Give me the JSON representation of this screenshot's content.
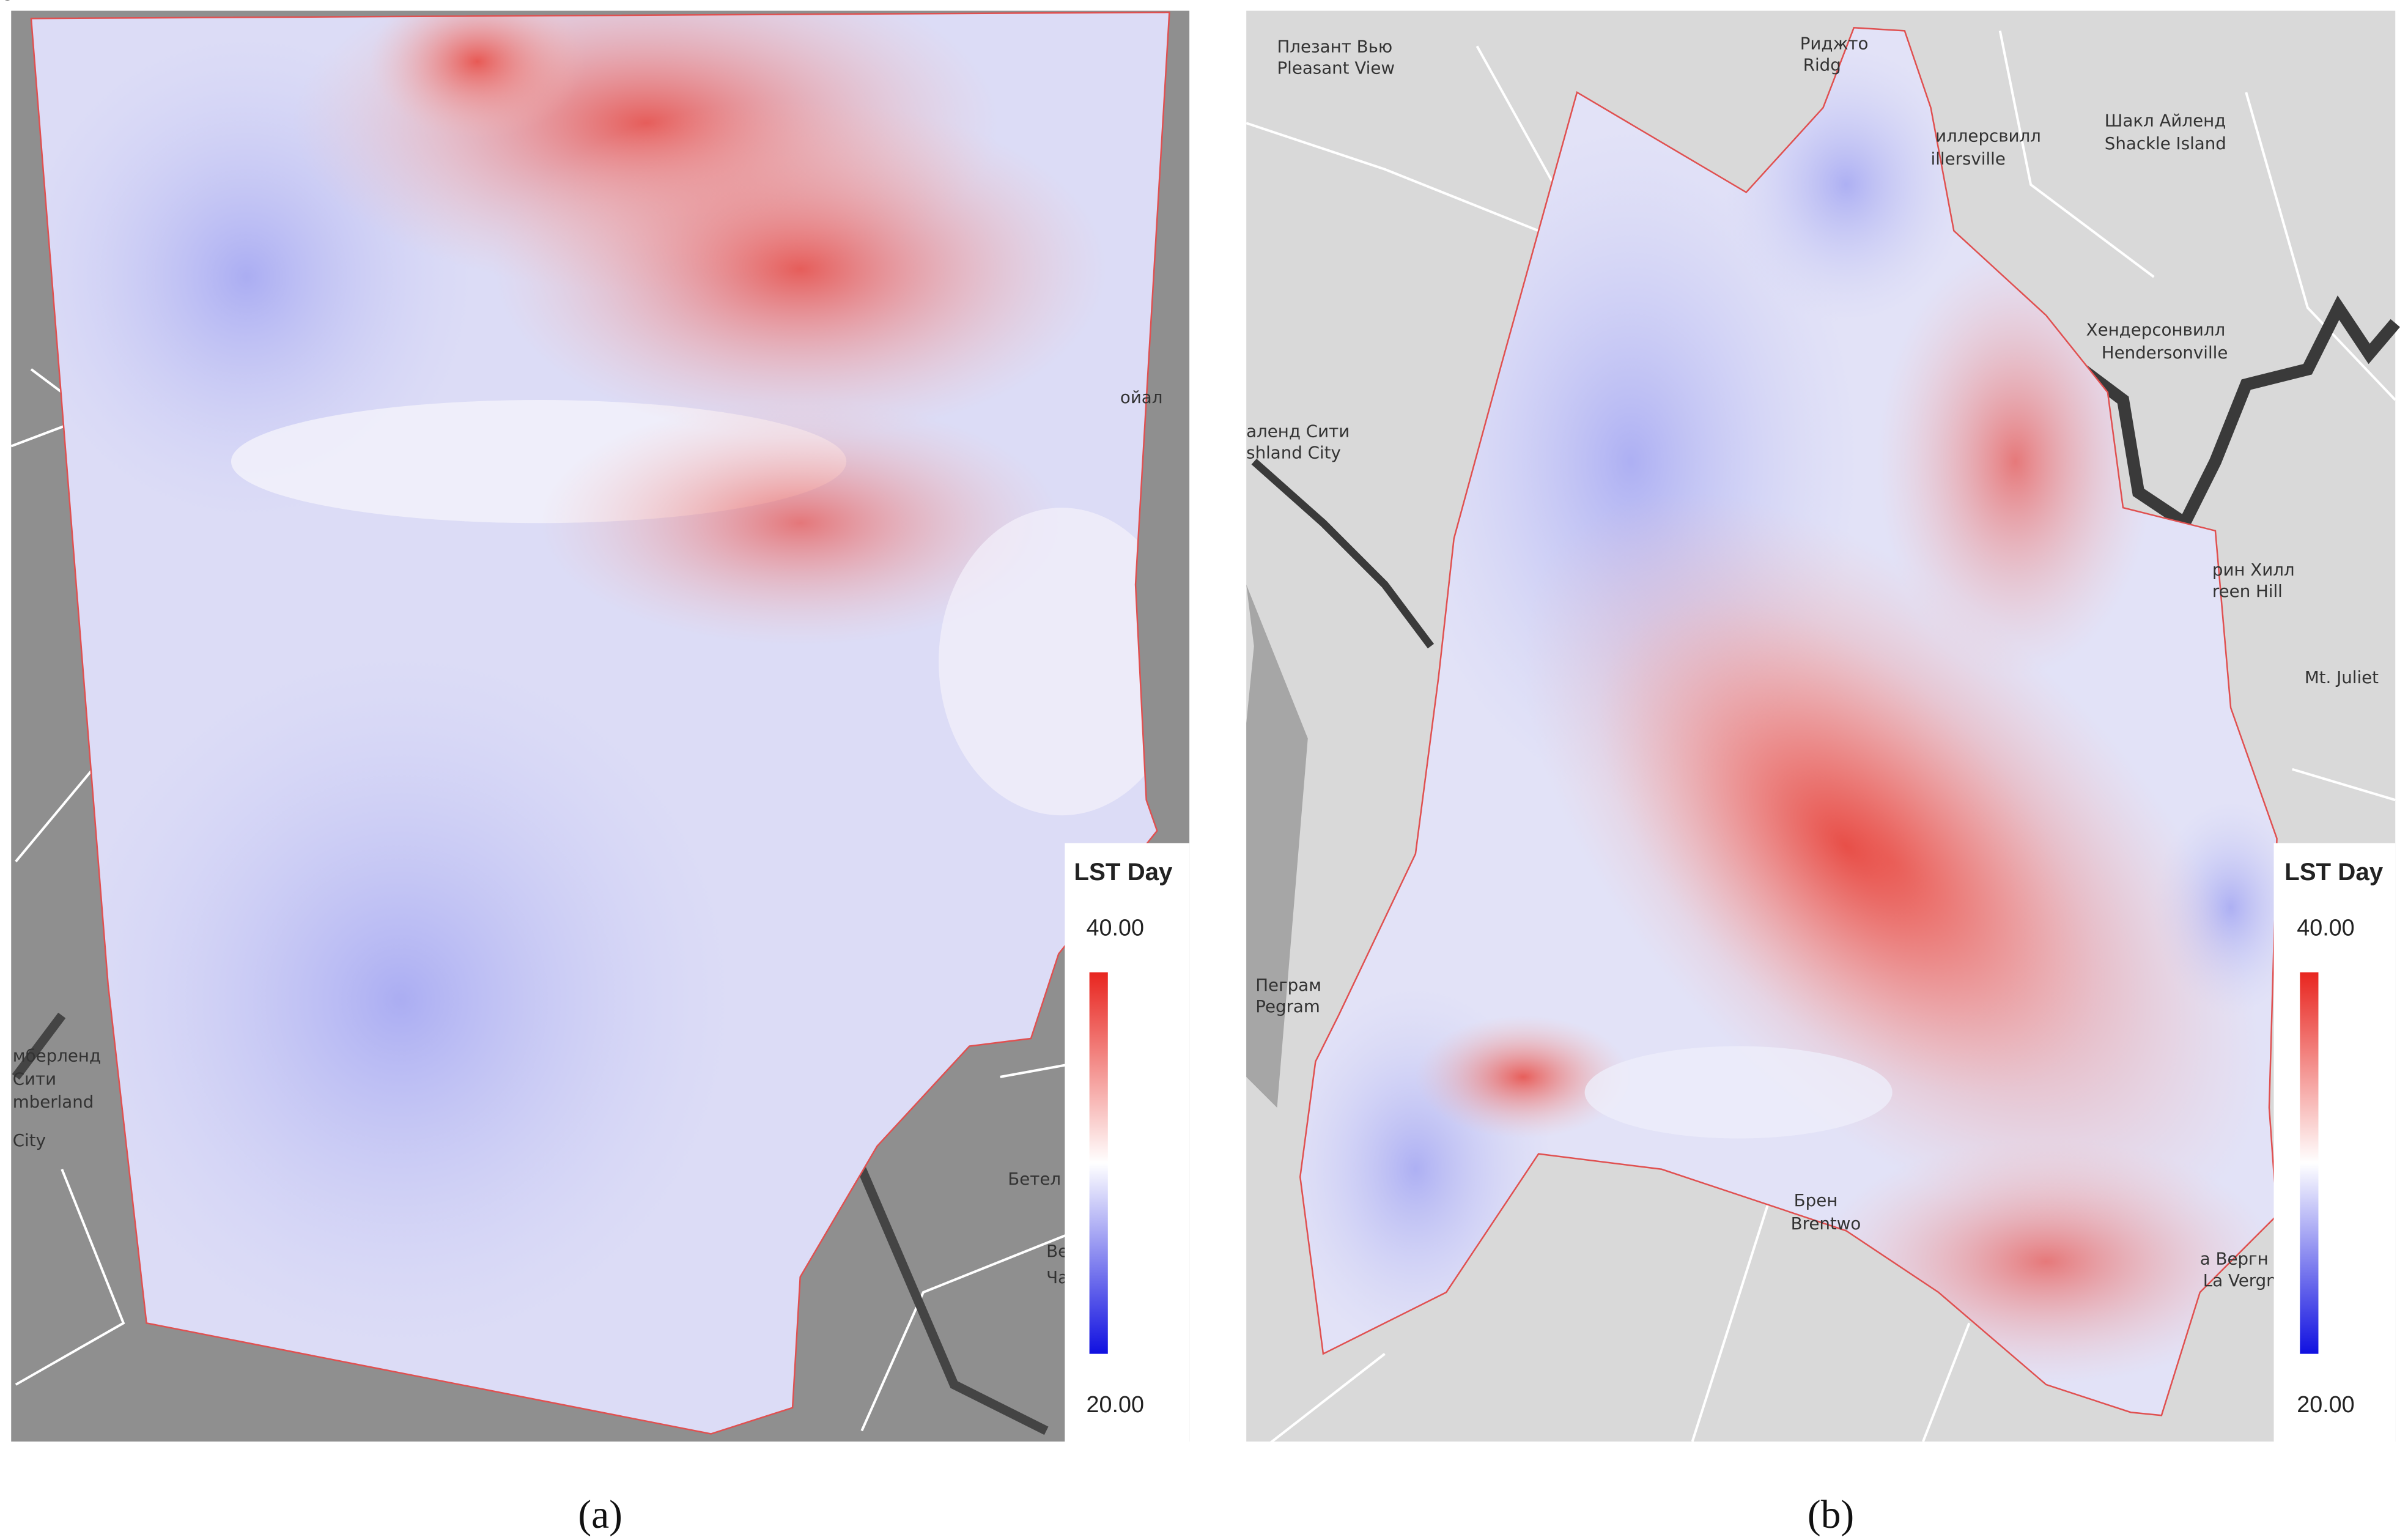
{
  "panels": [
    {
      "caption": "(a)",
      "legend": {
        "title": "LST Day",
        "max": "40.00",
        "min": "20.00"
      },
      "places": [
        "ойал",
        "мберленд",
        "Сити",
        "mberland",
        "City",
        "Бетел",
        "Bethel",
        "Ча",
        "Ch"
      ]
    },
    {
      "caption": "(b)",
      "legend": {
        "title": "LST Day",
        "max": "40.00",
        "min": "20.00"
      },
      "places": [
        "Плезант Вью",
        "Pleasant View",
        "Риджто",
        "Ridg",
        "иллерсвилл",
        "illersville",
        "Шакл Айленд",
        "Shackle Island",
        "Хендерсонвилл",
        "Hendersonville",
        "аленд Сити",
        "shland City",
        "рин Хилл",
        "reen Hill",
        "Mt. Juliet",
        "Пеграм",
        "Pegram",
        "Брен",
        "Brentwo",
        "а Вергн",
        "La Vergne"
      ]
    }
  ]
}
